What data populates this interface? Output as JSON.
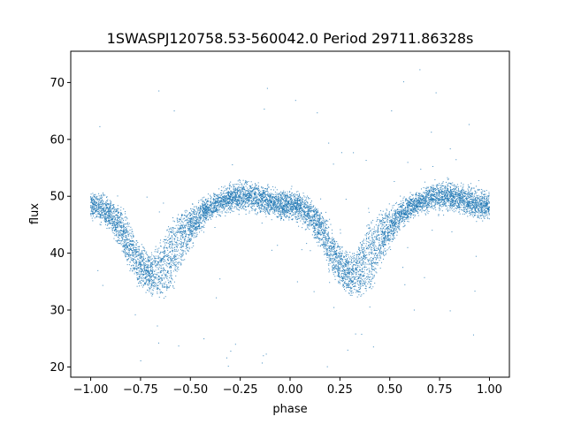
{
  "chart_data": {
    "type": "scatter",
    "title": "1SWASPJ120758.53-560042.0 Period 29711.86328s",
    "xlabel": "phase",
    "ylabel": "flux",
    "xlim": [
      -1.1,
      1.1
    ],
    "ylim": [
      18.2,
      75.5
    ],
    "xticks": [
      -1.0,
      -0.75,
      -0.5,
      -0.25,
      0.0,
      0.25,
      0.5,
      0.75,
      1.0
    ],
    "xtick_labels": [
      "−1.00",
      "−0.75",
      "−0.50",
      "−0.25",
      "0.00",
      "0.25",
      "0.50",
      "0.75",
      "1.00"
    ],
    "yticks": [
      20,
      30,
      40,
      50,
      60,
      70
    ],
    "ytick_labels": [
      "20",
      "30",
      "40",
      "50",
      "60",
      "70"
    ],
    "marker_color": "#1f77b4",
    "grid": false,
    "legend": "none",
    "phase_range": [
      -1.0,
      1.0
    ],
    "light_curve_profile": {
      "phase": [
        0.0,
        0.05,
        0.1,
        0.15,
        0.2,
        0.25,
        0.3,
        0.35,
        0.4,
        0.45,
        0.5,
        0.55,
        0.6,
        0.65,
        0.7,
        0.75,
        0.8,
        0.85,
        0.9,
        0.95,
        1.0
      ],
      "flux_upper": [
        50,
        49.5,
        48.5,
        47,
        44,
        40.5,
        39,
        41,
        45,
        46.5,
        47,
        48,
        49,
        50,
        51,
        51.5,
        51.5,
        51,
        50.5,
        50,
        50
      ],
      "flux_lower": [
        47,
        46.5,
        45,
        42,
        38,
        35,
        33.5,
        33,
        34,
        38,
        42,
        45,
        47,
        48,
        48.5,
        48.5,
        48.5,
        48,
        47.5,
        47,
        47
      ]
    },
    "n_points": 9000,
    "outlier_range": [
      20,
      73
    ]
  }
}
